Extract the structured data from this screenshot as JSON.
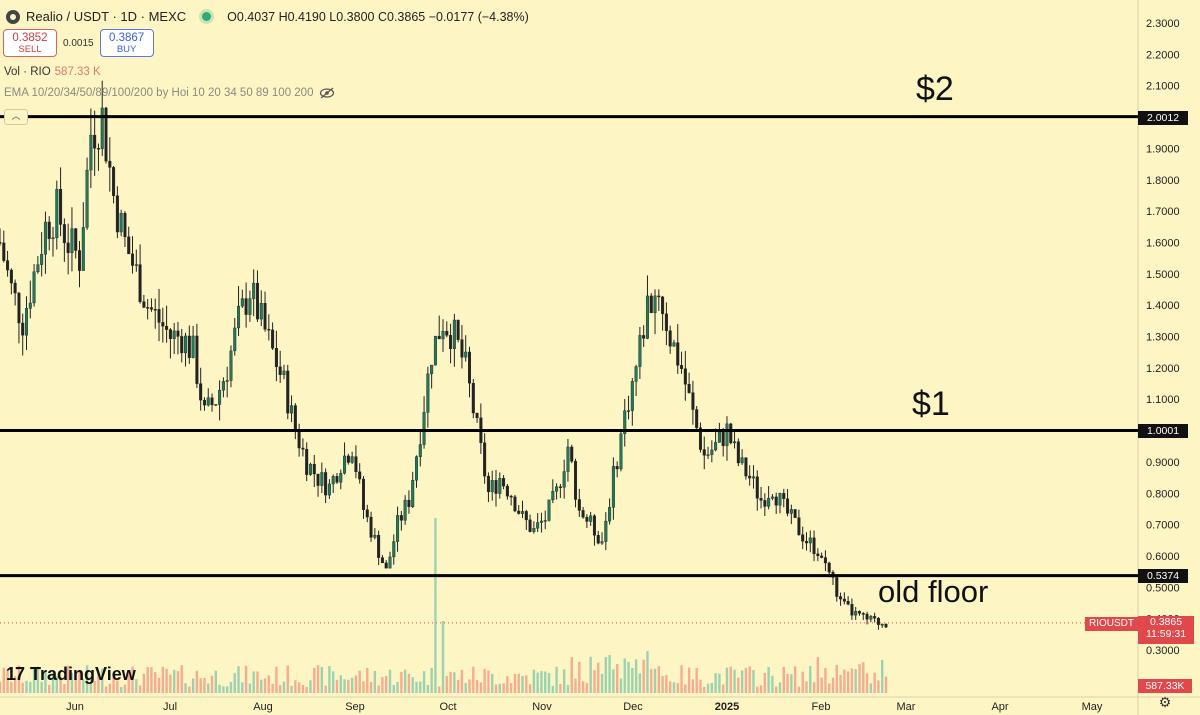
{
  "header": {
    "symbol_title": "Realio / USDT · 1D · MEXC",
    "ohlc": "O0.4037 H0.4190 L0.3800 C0.3865 −0.0177 (−4.38%)",
    "sell_price": "0.3852",
    "sell_label": "SELL",
    "spread": "0.0015",
    "buy_price": "0.3867",
    "buy_label": "BUY",
    "vol_label": "Vol · RIO",
    "vol_value": "587.33 K",
    "ema_label": "EMA 10/20/34/50/89/100/200 by Hoi 10 20 34 50 89 100 200",
    "icons": [
      "realio-logo-icon",
      "live-dot-icon",
      "eye-hidden-icon",
      "collapse-icon",
      "settings-icon"
    ]
  },
  "brand": {
    "mark": "17",
    "text": "TradingView"
  },
  "annotations": {
    "label_2": "$2",
    "label_1": "$1",
    "label_floor": "old floor"
  },
  "price_tags": {
    "two": "2.0012",
    "one": "1.0001",
    "floor": "0.5374",
    "symbol": "RIOUSDT",
    "current": "0.3865",
    "countdown": "11:59:31",
    "volume": "587.33K"
  },
  "chart_data": {
    "type": "candlestick",
    "title": "",
    "y_axis_ticks": [
      "2.3000",
      "2.2000",
      "2.1000",
      "2.0000",
      "1.9000",
      "1.8000",
      "1.7000",
      "1.6000",
      "1.5000",
      "1.4000",
      "1.3000",
      "1.2000",
      "1.1000",
      "1.0000",
      "0.9000",
      "0.8000",
      "0.7000",
      "0.6000",
      "0.5000",
      "0.4000",
      "0.3000"
    ],
    "x_axis_ticks": [
      "Jun",
      "Jul",
      "Aug",
      "Sep",
      "Oct",
      "Nov",
      "Dec",
      "2025",
      "Feb",
      "Mar",
      "Apr",
      "May"
    ],
    "ylim": [
      0.25,
      2.35
    ],
    "horizontal_lines": [
      2.0012,
      1.0001,
      0.5374
    ],
    "current_price": 0.3865,
    "colors": {
      "up": "#26a69a",
      "down": "#ef5350",
      "line": "#000000",
      "text": "#111111"
    },
    "close_path": [
      [
        0,
        1.6
      ],
      [
        3,
        1.45
      ],
      [
        6,
        1.35
      ],
      [
        9,
        1.5
      ],
      [
        12,
        1.65
      ],
      [
        15,
        1.7
      ],
      [
        18,
        1.6
      ],
      [
        21,
        1.55
      ],
      [
        24,
        1.95
      ],
      [
        27,
        2.0
      ],
      [
        30,
        1.75
      ],
      [
        33,
        1.6
      ],
      [
        36,
        1.5
      ],
      [
        39,
        1.4
      ],
      [
        42,
        1.35
      ],
      [
        45,
        1.3
      ],
      [
        48,
        1.3
      ],
      [
        51,
        1.25
      ],
      [
        54,
        1.05
      ],
      [
        57,
        1.1
      ],
      [
        60,
        1.2
      ],
      [
        63,
        1.35
      ],
      [
        66,
        1.45
      ],
      [
        69,
        1.35
      ],
      [
        72,
        1.25
      ],
      [
        75,
        1.15
      ],
      [
        78,
        1.0
      ],
      [
        81,
        0.9
      ],
      [
        84,
        0.85
      ],
      [
        87,
        0.82
      ],
      [
        90,
        0.9
      ],
      [
        93,
        0.95
      ],
      [
        96,
        0.75
      ],
      [
        99,
        0.65
      ],
      [
        102,
        0.55
      ],
      [
        105,
        0.7
      ],
      [
        108,
        0.78
      ],
      [
        111,
        1.0
      ],
      [
        114,
        1.25
      ],
      [
        117,
        1.35
      ],
      [
        120,
        1.3
      ],
      [
        123,
        1.2
      ],
      [
        126,
        1.0
      ],
      [
        129,
        0.8
      ],
      [
        132,
        0.85
      ],
      [
        135,
        0.8
      ],
      [
        138,
        0.72
      ],
      [
        141,
        0.68
      ],
      [
        144,
        0.72
      ],
      [
        147,
        0.8
      ],
      [
        150,
        0.95
      ],
      [
        153,
        0.75
      ],
      [
        156,
        0.7
      ],
      [
        159,
        0.65
      ],
      [
        162,
        0.85
      ],
      [
        165,
        1.05
      ],
      [
        168,
        1.2
      ],
      [
        171,
        1.4
      ],
      [
        174,
        1.45
      ],
      [
        177,
        1.3
      ],
      [
        180,
        1.2
      ],
      [
        183,
        1.05
      ],
      [
        186,
        0.92
      ],
      [
        189,
        0.95
      ],
      [
        192,
        1.0
      ],
      [
        195,
        0.9
      ],
      [
        198,
        0.85
      ],
      [
        201,
        0.78
      ],
      [
        204,
        0.82
      ],
      [
        207,
        0.75
      ],
      [
        210,
        0.7
      ],
      [
        213,
        0.65
      ],
      [
        216,
        0.62
      ],
      [
        219,
        0.55
      ],
      [
        222,
        0.45
      ],
      [
        225,
        0.42
      ],
      [
        228,
        0.4
      ],
      [
        231,
        0.39
      ],
      [
        234,
        0.3865
      ]
    ],
    "volume_spike_index": 115
  }
}
